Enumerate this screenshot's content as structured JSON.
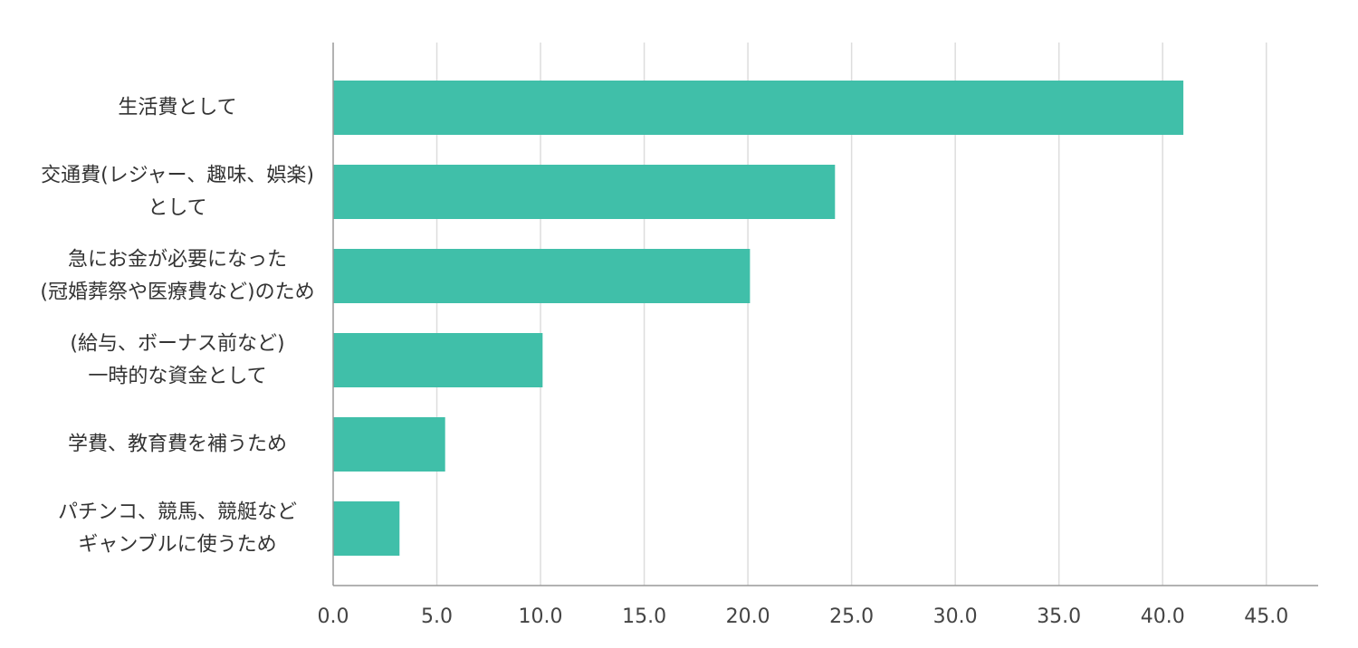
{
  "chart_data": {
    "type": "bar",
    "orientation": "horizontal",
    "categories": [
      [
        "生活費として"
      ],
      [
        "交通費(レジャー、趣味、娯楽)",
        "として"
      ],
      [
        "急にお金が必要になった",
        "(冠婚葬祭や医療費など)のため"
      ],
      [
        "(給与、ボーナス前など)",
        "一時的な資金として"
      ],
      [
        "学費、教育費を補うため"
      ],
      [
        "パチンコ、競馬、競艇など",
        "ギャンブルに使うため"
      ]
    ],
    "values": [
      41.0,
      24.2,
      20.1,
      10.1,
      5.4,
      3.2
    ],
    "x_ticks": [
      "0.0",
      "5.0",
      "10.0",
      "15.0",
      "20.0",
      "25.0",
      "30.0",
      "35.0",
      "40.0",
      "45.0"
    ],
    "xlim": [
      0,
      47.5
    ],
    "grid": true,
    "legend": "none",
    "title": "",
    "xlabel": "",
    "ylabel": "",
    "bar_color": "#40bfa9",
    "grid_color": "#dddddd",
    "axis_color": "#999999"
  }
}
